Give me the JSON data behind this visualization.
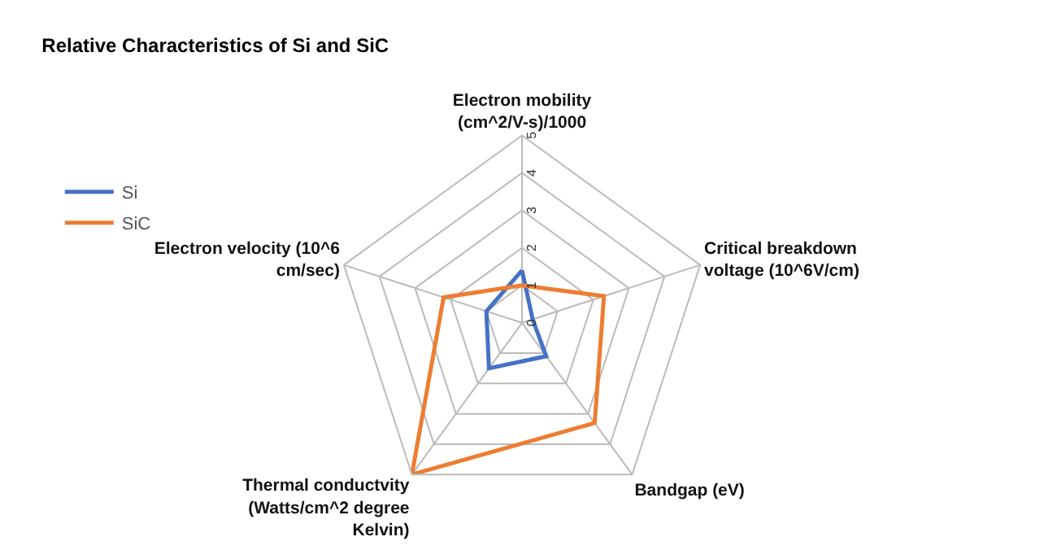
{
  "chart_data": {
    "type": "radar",
    "title": "Relative Characteristics of Si and SiC",
    "categories": [
      "Electron mobility (cm^2/V-s)/1000",
      "Critical breakdown voltage (10^6V/cm)",
      "Bandgap (eV)",
      "Thermal conductvity (Watts/cm^2 degree Kelvin)",
      "Electron velocity (10^6 cm/sec)"
    ],
    "series": [
      {
        "name": "Si",
        "color": "#4472c4",
        "values": [
          1.4,
          0.3,
          1.1,
          1.5,
          1.0
        ]
      },
      {
        "name": "SiC",
        "color": "#ed7d31",
        "values": [
          1.0,
          2.3,
          3.3,
          5.0,
          2.2
        ]
      }
    ],
    "ylim": [
      0,
      5
    ],
    "yticks": [
      0,
      1,
      2,
      3,
      4,
      5
    ],
    "grid": true,
    "legend": "top left",
    "marker": "none",
    "line_style": "solid"
  }
}
